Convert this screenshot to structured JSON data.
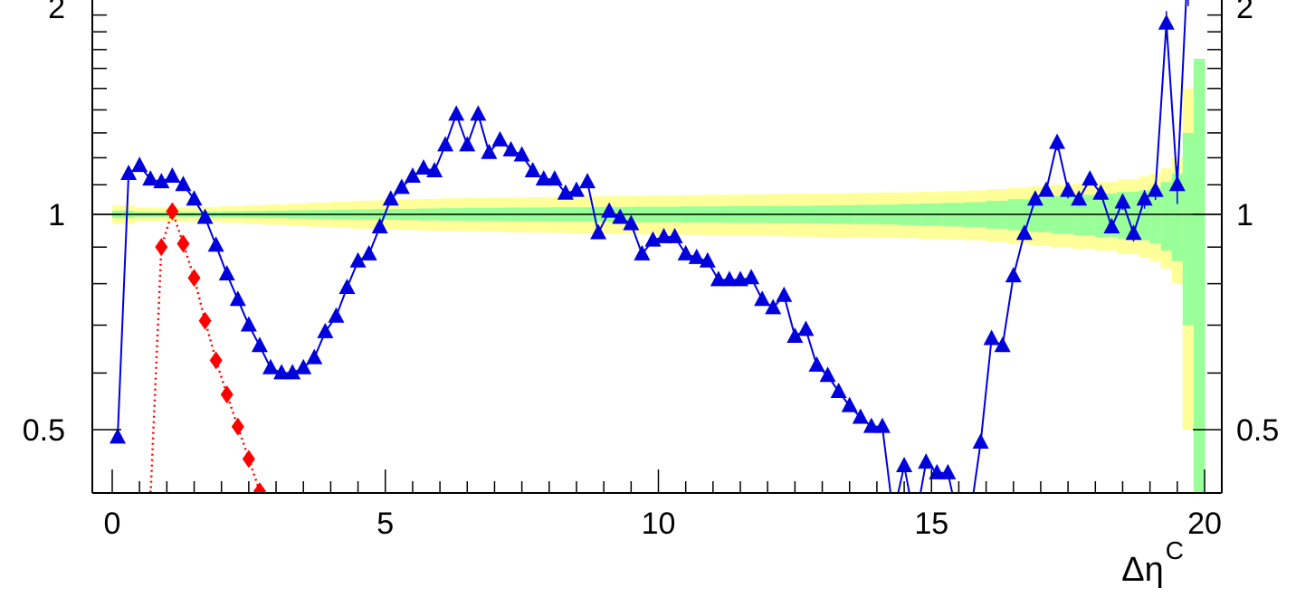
{
  "chart_data": {
    "type": "line",
    "xlabel": "Δη",
    "xlabel_superscript": "C",
    "xlim": [
      -0.4,
      20.5
    ],
    "ylim": [
      0.4,
      2.2
    ],
    "yscale": "log",
    "x_ticks": [
      "0",
      "5",
      "10",
      "15",
      "20"
    ],
    "y_ticks_left": [
      "0.5",
      "1",
      "2"
    ],
    "y_ticks_right": [
      "0.5",
      "1",
      "2"
    ],
    "reference_line_y": 1,
    "colors": {
      "blue_series": "#0000dd",
      "red_series": "#ff0000",
      "outer_band": "#ffff99",
      "inner_band": "#99ff99"
    },
    "series": [
      {
        "marker": "triangle",
        "color": "#0000dd",
        "line": "solid",
        "x": [
          0.1,
          0.3,
          0.5,
          0.7,
          0.9,
          1.1,
          1.3,
          1.5,
          1.7,
          1.9,
          2.1,
          2.3,
          2.5,
          2.7,
          2.9,
          3.1,
          3.3,
          3.5,
          3.7,
          3.9,
          4.1,
          4.3,
          4.5,
          4.7,
          4.9,
          5.1,
          5.3,
          5.5,
          5.7,
          5.9,
          6.1,
          6.3,
          6.5,
          6.7,
          6.9,
          7.1,
          7.3,
          7.5,
          7.7,
          7.9,
          8.1,
          8.3,
          8.5,
          8.7,
          8.9,
          9.1,
          9.3,
          9.5,
          9.7,
          9.9,
          10.1,
          10.3,
          10.5,
          10.7,
          10.9,
          11.1,
          11.3,
          11.5,
          11.7,
          11.9,
          12.1,
          12.3,
          12.5,
          12.7,
          12.9,
          13.1,
          13.3,
          13.5,
          13.7,
          13.9,
          14.1,
          14.3,
          14.5,
          14.7,
          14.9,
          15.1,
          15.3,
          15.5,
          15.7,
          15.9,
          16.1,
          16.3,
          16.5,
          16.7,
          16.9,
          17.1,
          17.3,
          17.5,
          17.7,
          17.9,
          18.1,
          18.3,
          18.5,
          18.7,
          18.9,
          19.1,
          19.3,
          19.5,
          19.7
        ],
        "y": [
          0.488,
          1.14,
          1.17,
          1.12,
          1.11,
          1.13,
          1.1,
          1.05,
          0.99,
          0.905,
          0.825,
          0.76,
          0.7,
          0.655,
          0.61,
          0.6,
          0.6,
          0.61,
          0.63,
          0.685,
          0.72,
          0.79,
          0.86,
          0.88,
          0.96,
          1.05,
          1.09,
          1.13,
          1.16,
          1.15,
          1.25,
          1.38,
          1.25,
          1.38,
          1.22,
          1.27,
          1.23,
          1.21,
          1.15,
          1.12,
          1.12,
          1.07,
          1.08,
          1.11,
          0.942,
          1.01,
          0.99,
          0.97,
          0.88,
          0.92,
          0.93,
          0.93,
          0.88,
          0.87,
          0.86,
          0.81,
          0.81,
          0.81,
          0.815,
          0.76,
          0.74,
          0.77,
          0.675,
          0.69,
          0.615,
          0.595,
          0.565,
          0.54,
          0.52,
          0.505,
          0.505,
          0.38,
          0.445,
          0.37,
          0.45,
          0.435,
          0.435,
          0.37,
          0.375,
          0.48,
          0.67,
          0.655,
          0.82,
          0.94,
          1.05,
          1.08,
          1.26,
          1.08,
          1.05,
          1.12,
          1.07,
          0.96,
          1.04,
          0.94,
          1.05,
          1.08,
          1.85,
          1.1,
          2.3
        ],
        "y_errors": [
          0.01,
          0.01,
          0.01,
          0.01,
          0.01,
          0.01,
          0.01,
          0.01,
          0.01,
          0.01,
          0.01,
          0.01,
          0.01,
          0.01,
          0.01,
          0.01,
          0.01,
          0.01,
          0.01,
          0.01,
          0.01,
          0.01,
          0.01,
          0.01,
          0.01,
          0.01,
          0.01,
          0.01,
          0.01,
          0.01,
          0.01,
          0.01,
          0.01,
          0.01,
          0.01,
          0.01,
          0.01,
          0.01,
          0.01,
          0.01,
          0.01,
          0.01,
          0.01,
          0.01,
          0.01,
          0.01,
          0.01,
          0.01,
          0.01,
          0.01,
          0.01,
          0.01,
          0.01,
          0.01,
          0.01,
          0.01,
          0.01,
          0.01,
          0.01,
          0.01,
          0.01,
          0.01,
          0.01,
          0.01,
          0.01,
          0.01,
          0.01,
          0.01,
          0.01,
          0.01,
          0.01,
          0.01,
          0.01,
          0.01,
          0.01,
          0.01,
          0.01,
          0.01,
          0.01,
          0.015,
          0.015,
          0.015,
          0.015,
          0.015,
          0.02,
          0.02,
          0.025,
          0.025,
          0.02,
          0.02,
          0.02,
          0.02,
          0.025,
          0.025,
          0.03,
          0.03,
          0.04,
          0.06,
          0.15
        ]
      },
      {
        "marker": "diamond",
        "color": "#ff0000",
        "line": "dotted",
        "x": [
          0.7,
          0.9,
          1.1,
          1.3,
          1.5,
          1.7,
          1.9,
          2.1,
          2.3,
          2.5,
          2.7
        ],
        "y": [
          0.4,
          0.9,
          1.01,
          0.91,
          0.815,
          0.71,
          0.625,
          0.56,
          0.505,
          0.455,
          0.41
        ]
      }
    ],
    "bands": {
      "x_edges": [
        0,
        0.4,
        0.8,
        1.2,
        1.6,
        2.0,
        2.4,
        2.8,
        3.2,
        3.6,
        4.0,
        4.4,
        4.8,
        5.2,
        5.6,
        6.0,
        6.4,
        6.8,
        7.2,
        7.6,
        8.0,
        8.4,
        8.8,
        9.2,
        9.6,
        10.0,
        10.4,
        10.8,
        11.2,
        11.6,
        12.0,
        12.4,
        12.8,
        13.2,
        13.6,
        14.0,
        14.4,
        14.8,
        15.2,
        15.6,
        16.0,
        16.4,
        16.8,
        17.2,
        17.6,
        18.0,
        18.4,
        18.8,
        19.0,
        19.2,
        19.4,
        19.6,
        19.8
      ],
      "outer_halfwidth": [
        0.03,
        0.022,
        0.022,
        0.022,
        0.024,
        0.027,
        0.03,
        0.033,
        0.036,
        0.039,
        0.042,
        0.045,
        0.047,
        0.049,
        0.051,
        0.053,
        0.054,
        0.055,
        0.056,
        0.057,
        0.058,
        0.059,
        0.06,
        0.061,
        0.062,
        0.063,
        0.064,
        0.065,
        0.066,
        0.067,
        0.068,
        0.069,
        0.07,
        0.071,
        0.072,
        0.073,
        0.074,
        0.076,
        0.078,
        0.08,
        0.085,
        0.09,
        0.095,
        0.1,
        0.105,
        0.11,
        0.12,
        0.13,
        0.14,
        0.16,
        0.2,
        0.5,
        0.65
      ],
      "inner_halfwidth": [
        0.012,
        0.008,
        0.008,
        0.008,
        0.009,
        0.01,
        0.011,
        0.012,
        0.013,
        0.014,
        0.015,
        0.016,
        0.017,
        0.018,
        0.019,
        0.02,
        0.021,
        0.021,
        0.022,
        0.022,
        0.023,
        0.023,
        0.024,
        0.024,
        0.025,
        0.025,
        0.026,
        0.026,
        0.027,
        0.027,
        0.028,
        0.028,
        0.029,
        0.03,
        0.031,
        0.032,
        0.034,
        0.036,
        0.038,
        0.04,
        0.045,
        0.05,
        0.055,
        0.06,
        0.065,
        0.07,
        0.075,
        0.08,
        0.09,
        0.11,
        0.14,
        0.3,
        0.65
      ]
    }
  }
}
